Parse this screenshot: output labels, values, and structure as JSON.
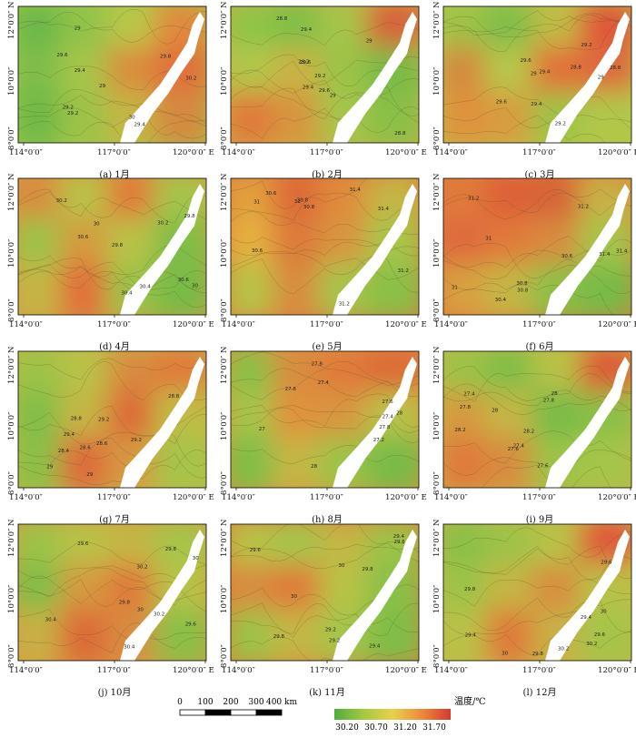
{
  "panels": [
    {
      "caption": "(a) 1月",
      "lon": [
        "114°0′0″",
        "117°0′0″",
        "120°0′0″ E"
      ],
      "lat": [
        "12°0′0″ N",
        "10°0′0″",
        "8°0′0″"
      ],
      "labels": [
        "29.4",
        "29",
        "29.2",
        "29.6",
        "29.8",
        "30",
        "30.2"
      ],
      "heat": [
        [
          "#6ab84a",
          "#8fc248",
          "#b8c848",
          "#e08a3c"
        ],
        [
          "#7ebd48",
          "#a6c548",
          "#d98d3e",
          "#e2703a"
        ],
        [
          "#70b947",
          "#9cc347",
          "#c4b645",
          "#d48a40"
        ]
      ]
    },
    {
      "caption": "(b) 2月",
      "lon": [
        "114°0′0″",
        "117°0′0″",
        "120°0′0″ E"
      ],
      "lat": [
        "12°0′0″ N",
        "10°0′0″",
        "8°0′0″"
      ],
      "labels": [
        "29",
        "29.2",
        "29.4",
        "28.8",
        "29.6"
      ],
      "heat": [
        [
          "#8ec547",
          "#7fbf47",
          "#a5c548",
          "#d8603a"
        ],
        [
          "#b0c748",
          "#c9b244",
          "#9cc347",
          "#78bb47"
        ],
        [
          "#e07a3a",
          "#d7953f",
          "#a5c548",
          "#8ac046"
        ]
      ]
    },
    {
      "caption": "(c) 3月",
      "lon": [
        "114°0′0″",
        "117°0′0″",
        "120°0′0″ E"
      ],
      "lat": [
        "12°0′0″ N",
        "10°0′0″",
        "8°0′0″"
      ],
      "labels": [
        "29",
        "29.2",
        "29.4",
        "29.6",
        "28.8"
      ],
      "heat": [
        [
          "#9cc347",
          "#7ebd48",
          "#c0bc45",
          "#e0573a"
        ],
        [
          "#d48a40",
          "#b6c748",
          "#e2703a",
          "#de6a3c"
        ],
        [
          "#e0923c",
          "#d89c40",
          "#9cc347",
          "#b0c748"
        ]
      ]
    },
    {
      "caption": "(d) 4月",
      "lon": [
        "114°0′0″",
        "117°0′0″",
        "120°0′0″ E"
      ],
      "lat": [
        "12°0′0″ N",
        "10°0′0″",
        "8°0′0″"
      ],
      "labels": [
        "30",
        "30.2",
        "30.4",
        "30.6",
        "29.8"
      ],
      "heat": [
        [
          "#d88c3f",
          "#b8c246",
          "#e07a3a",
          "#a5c548"
        ],
        [
          "#9cc347",
          "#d59a40",
          "#b8c246",
          "#80be47"
        ],
        [
          "#c4b645",
          "#e2703a",
          "#9cc347",
          "#78bb47"
        ]
      ]
    },
    {
      "caption": "(e) 5月",
      "lon": [
        "114°0′0″",
        "117°0′0″",
        "120°0′0″ E"
      ],
      "lat": [
        "12°0′0″ N",
        "10°0′0″",
        "8°0′0″"
      ],
      "labels": [
        "31",
        "31.2",
        "31.4",
        "30.8",
        "30.6"
      ],
      "heat": [
        [
          "#e2a03c",
          "#dd6a38",
          "#e08a3c",
          "#c4b645"
        ],
        [
          "#e4b040",
          "#dd7a3a",
          "#d8953f",
          "#a8c548"
        ],
        [
          "#b8c246",
          "#d88c3f",
          "#a5c548",
          "#8ac046"
        ]
      ]
    },
    {
      "caption": "(f) 6月",
      "lon": [
        "114°0′0″",
        "117°0′0″",
        "120°0′0″ E"
      ],
      "lat": [
        "12°0′0″ N",
        "10°0′0″",
        "8°0′0″"
      ],
      "labels": [
        "31",
        "31.2",
        "31.4",
        "30.8",
        "30.6",
        "30.4"
      ],
      "heat": [
        [
          "#e07a3a",
          "#dd6038",
          "#d66438",
          "#c8b044"
        ],
        [
          "#de6a3c",
          "#e07a3a",
          "#d88c3f",
          "#a5c548"
        ],
        [
          "#d8a040",
          "#c4b645",
          "#8ac046",
          "#78bb47"
        ]
      ]
    },
    {
      "caption": "(g) 7月",
      "lon": [
        "114°0′0″",
        "117°0′0″",
        "120°0′0″ E"
      ],
      "lat": [
        "12°0′0″ N",
        "10°0′0″",
        "8°0′0″"
      ],
      "labels": [
        "28.6",
        "28.8",
        "29",
        "29.2",
        "29.4",
        "28.4"
      ],
      "heat": [
        [
          "#9cc347",
          "#b8c246",
          "#d88c3f",
          "#e07a3a"
        ],
        [
          "#80be47",
          "#c4b645",
          "#dd6a38",
          "#c0bc45"
        ],
        [
          "#8ac046",
          "#de6a3c",
          "#d59a40",
          "#a5c548"
        ]
      ]
    },
    {
      "caption": "(h) 8月",
      "lon": [
        "114°0′0″",
        "117°0′0″",
        "120°0′0″ E"
      ],
      "lat": [
        "12°0′0″ N",
        "10°0′0″",
        "8°0′0″"
      ],
      "labels": [
        "27.8",
        "28",
        "27.6",
        "27.4",
        "27.2",
        "27"
      ],
      "heat": [
        [
          "#8ac046",
          "#d88c3f",
          "#e07a3a",
          "#dd6a38"
        ],
        [
          "#a5c548",
          "#e0923c",
          "#d8953f",
          "#b8c246"
        ],
        [
          "#80be47",
          "#c4b645",
          "#9cc347",
          "#78bb47"
        ]
      ]
    },
    {
      "caption": "(i) 9月",
      "lon": [
        "114°0′0″",
        "117°0′0″",
        "120°0′0″ E"
      ],
      "lat": [
        "12°0′0″ N",
        "10°0′0″",
        "8°0′0″"
      ],
      "labels": [
        "27.8",
        "28",
        "28.2",
        "27.6",
        "27.4"
      ],
      "heat": [
        [
          "#9cc347",
          "#80be47",
          "#b8c246",
          "#dd5a38"
        ],
        [
          "#d59a40",
          "#c4b645",
          "#78bb47",
          "#8ac046"
        ],
        [
          "#e07a3a",
          "#d88c3f",
          "#9cc347",
          "#a5c548"
        ]
      ]
    },
    {
      "caption": "(j) 10月",
      "lon": [
        "114°0′0″",
        "117°0′0″",
        "120°0′0″ E"
      ],
      "lat": [
        "12°0′0″ N",
        "10°0′0″",
        "8°0′0″"
      ],
      "labels": [
        "30",
        "30.2",
        "30.4",
        "29.8",
        "29.6"
      ],
      "heat": [
        [
          "#9cc347",
          "#b8c246",
          "#c4b645",
          "#a5c548"
        ],
        [
          "#80be47",
          "#d59a40",
          "#e07a3a",
          "#b8c246"
        ],
        [
          "#c8b044",
          "#dd6a38",
          "#d88c3f",
          "#8ac046"
        ]
      ]
    },
    {
      "caption": "(k) 11月",
      "lon": [
        "114°0′0″",
        "117°0′0″",
        "120°0′0″ E"
      ],
      "lat": [
        "12°0′0″ N",
        "10°0′0″",
        "8°0′0″"
      ],
      "labels": [
        "29.4",
        "29.6",
        "29.8",
        "30",
        "29.2"
      ],
      "heat": [
        [
          "#b8c246",
          "#a5c548",
          "#c4b645",
          "#9cc347"
        ],
        [
          "#d88c3f",
          "#e07a3a",
          "#b8c246",
          "#8ac046"
        ],
        [
          "#9cc347",
          "#c4b645",
          "#a5c548",
          "#80be47"
        ]
      ]
    },
    {
      "caption": "(l) 12月",
      "lon": [
        "114°0′0″",
        "117°0′0″",
        "120°0′0″ E"
      ],
      "lat": [
        "12°0′0″ N",
        "10°0′0″",
        "8°0′0″"
      ],
      "labels": [
        "29.6",
        "29.8",
        "30",
        "30.2",
        "29.4"
      ],
      "heat": [
        [
          "#8ac046",
          "#9cc347",
          "#b8c246",
          "#e0573a"
        ],
        [
          "#9cc347",
          "#c4b645",
          "#d88c3f",
          "#b8c246"
        ],
        [
          "#b8c246",
          "#e07a3a",
          "#c8b044",
          "#a5c548"
        ]
      ]
    }
  ],
  "scale": {
    "ticks": [
      "0",
      "100",
      "200",
      "300",
      "400 km"
    ]
  },
  "legend": {
    "title": "温度/℃",
    "ticks": [
      "30.20",
      "30.70",
      "31.20",
      "31.70"
    ],
    "colors": [
      "#4caf3a",
      "#a6c83f",
      "#e7d24a",
      "#ee8a3a",
      "#d9382c"
    ]
  }
}
